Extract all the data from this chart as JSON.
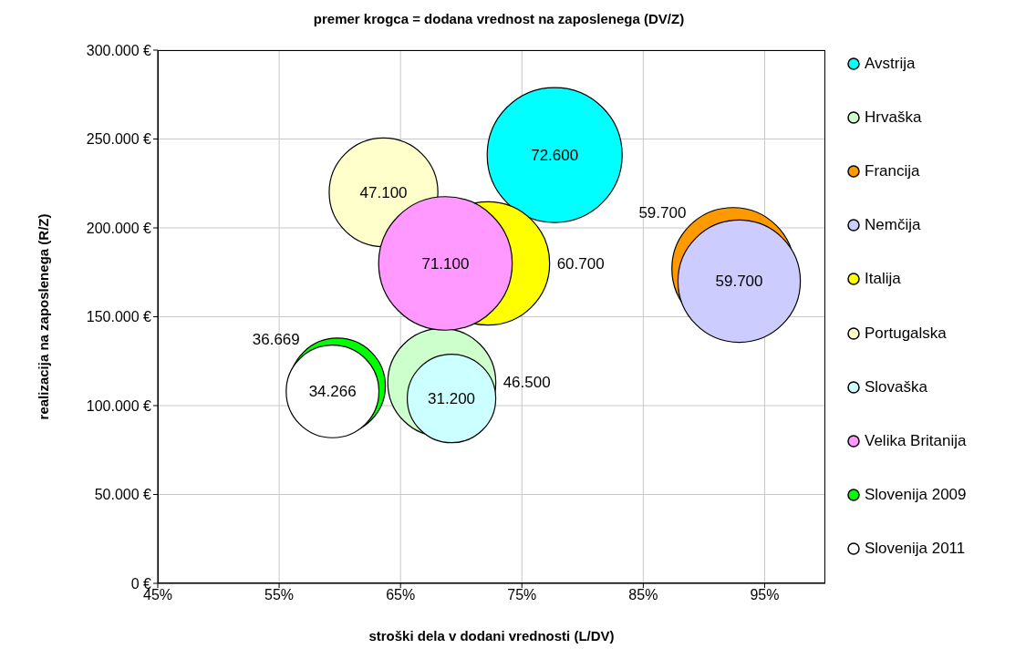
{
  "chart_data": {
    "type": "bubble",
    "title": "premer krogca = dodana vrednost na zaposlenega (DV/Z)",
    "xlabel": "stroški dela v dodani vrednosti (L/DV)",
    "ylabel": "realizacija na zaposlenega (R/Z)",
    "xlim": [
      45,
      100
    ],
    "xticks": [
      {
        "value": 45,
        "label": "45%"
      },
      {
        "value": 55,
        "label": "55%"
      },
      {
        "value": 65,
        "label": "65%"
      },
      {
        "value": 75,
        "label": "75%"
      },
      {
        "value": 85,
        "label": "85%"
      },
      {
        "value": 95,
        "label": "95%"
      }
    ],
    "ylim": [
      0,
      300000
    ],
    "yticks": [
      {
        "value": 0,
        "label": "0 €"
      },
      {
        "value": 50000,
        "label": "50.000 €"
      },
      {
        "value": 100000,
        "label": "100.000 €"
      },
      {
        "value": 150000,
        "label": "150.000 €"
      },
      {
        "value": 200000,
        "label": "200.000 €"
      },
      {
        "value": 250000,
        "label": "250.000 €"
      },
      {
        "value": 300000,
        "label": "300.000 €"
      }
    ],
    "grid": true,
    "legend": "right",
    "series": [
      {
        "name": "Avstrija",
        "color": "#00ffff",
        "x": [
          77.7
        ],
        "values": [
          241000
        ],
        "sizes": [
          72600
        ],
        "value_labels": [
          "72.600"
        ]
      },
      {
        "name": "Hrvaška",
        "color": "#ccffcc",
        "x": [
          68.4
        ],
        "values": [
          113000
        ],
        "sizes": [
          46500
        ],
        "value_labels": [
          "46.500"
        ]
      },
      {
        "name": "Francija",
        "color": "#ff9900",
        "x": [
          92.4
        ],
        "values": [
          177000
        ],
        "sizes": [
          59700
        ],
        "value_labels": [
          "59.700"
        ]
      },
      {
        "name": "Nemčija",
        "color": "#ccccff",
        "x": [
          92.9
        ],
        "values": [
          170000
        ],
        "sizes": [
          59700
        ],
        "value_labels": [
          "59.700"
        ]
      },
      {
        "name": "Italija",
        "color": "#ffff00",
        "x": [
          72.2
        ],
        "values": [
          180000
        ],
        "sizes": [
          60700
        ],
        "value_labels": [
          "60.700"
        ]
      },
      {
        "name": "Portugalska",
        "color": "#ffffcc",
        "x": [
          63.6
        ],
        "values": [
          220000
        ],
        "sizes": [
          47100
        ],
        "value_labels": [
          "47.100"
        ]
      },
      {
        "name": "Slovaška",
        "color": "#ccffff",
        "x": [
          69.2
        ],
        "values": [
          104000
        ],
        "sizes": [
          31200
        ],
        "value_labels": [
          "31.200"
        ]
      },
      {
        "name": "Velika Britanija",
        "color": "#ff99ff",
        "x": [
          68.7
        ],
        "values": [
          180000
        ],
        "sizes": [
          71100
        ],
        "value_labels": [
          "71.100"
        ]
      },
      {
        "name": "Slovenija 2009",
        "color": "#00ff00",
        "x": [
          59.8
        ],
        "values": [
          111000
        ],
        "sizes": [
          36669
        ],
        "value_labels": [
          "36.669"
        ]
      },
      {
        "name": "Slovenija 2011",
        "color": "#ffffff",
        "x": [
          59.4
        ],
        "values": [
          108000
        ],
        "sizes": [
          34266
        ],
        "value_labels": [
          "34.266"
        ]
      }
    ]
  }
}
